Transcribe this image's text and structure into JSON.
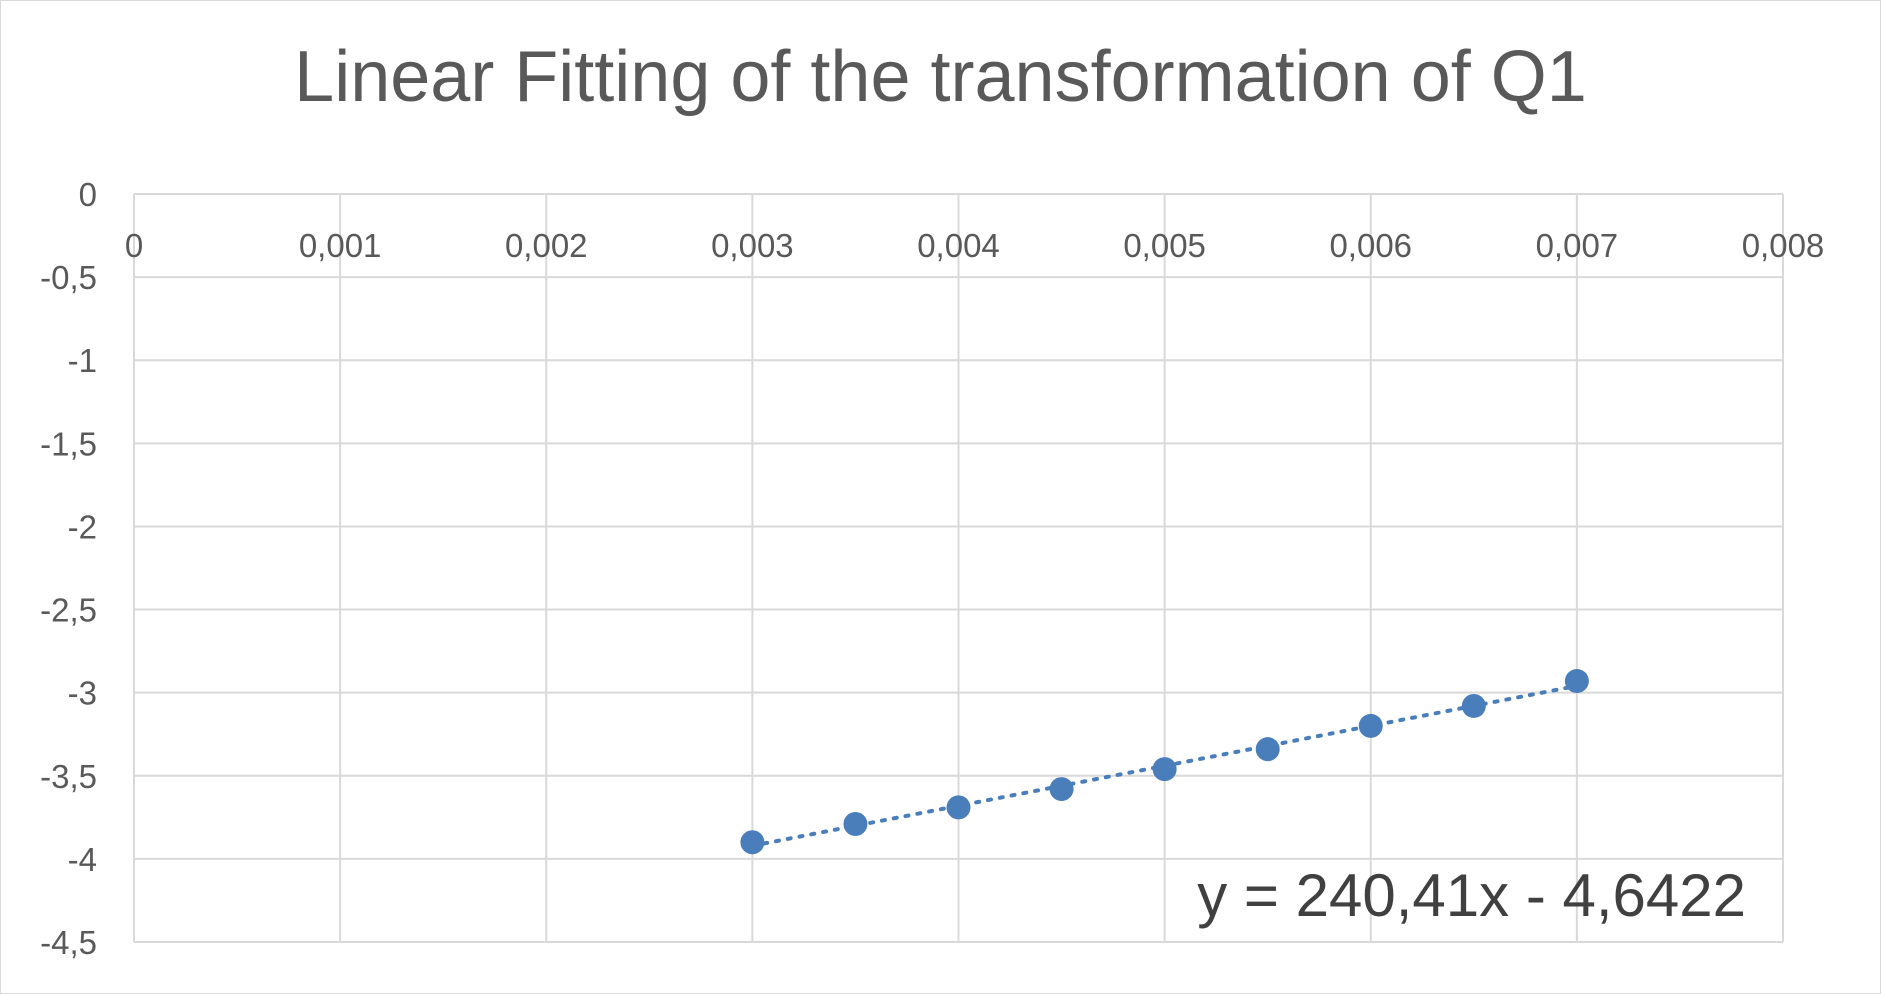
{
  "chart_data": {
    "type": "scatter",
    "title": "Linear Fitting of the transformation of Q1",
    "xlabel": "",
    "ylabel": "",
    "xlim": [
      0,
      0.008
    ],
    "ylim": [
      -4.5,
      0
    ],
    "x_ticks": [
      0,
      0.001,
      0.002,
      0.003,
      0.004,
      0.005,
      0.006,
      0.007,
      0.008
    ],
    "x_tick_labels": [
      "0",
      "0,001",
      "0,002",
      "0,003",
      "0,004",
      "0,005",
      "0,006",
      "0,007",
      "0,008"
    ],
    "y_ticks": [
      0,
      -0.5,
      -1,
      -1.5,
      -2,
      -2.5,
      -3,
      -3.5,
      -4,
      -4.5
    ],
    "y_tick_labels": [
      "0",
      "-0,5",
      "-1",
      "-1,5",
      "-2",
      "-2,5",
      "-3",
      "-3,5",
      "-4",
      "-4,5"
    ],
    "grid": true,
    "legend": "none",
    "series": [
      {
        "x": [
          0.003,
          0.0035,
          0.004,
          0.0045,
          0.005,
          0.0055,
          0.006,
          0.0065,
          0.007
        ],
        "y": [
          -3.9,
          -3.79,
          -3.69,
          -3.58,
          -3.46,
          -3.34,
          -3.2,
          -3.08,
          -2.93
        ],
        "color": "#4a7ebb"
      }
    ],
    "trendline": {
      "type": "linear",
      "slope": 240.41,
      "intercept": -4.6422,
      "x_range": [
        0.003,
        0.007
      ],
      "style": "dotted",
      "color": "#4a7ebb",
      "equation_label": "y = 240,41x - 4,6422"
    },
    "colors": {
      "grid": "#d9d9d9",
      "text": "#595959",
      "marker": "#4a7ebb"
    }
  }
}
